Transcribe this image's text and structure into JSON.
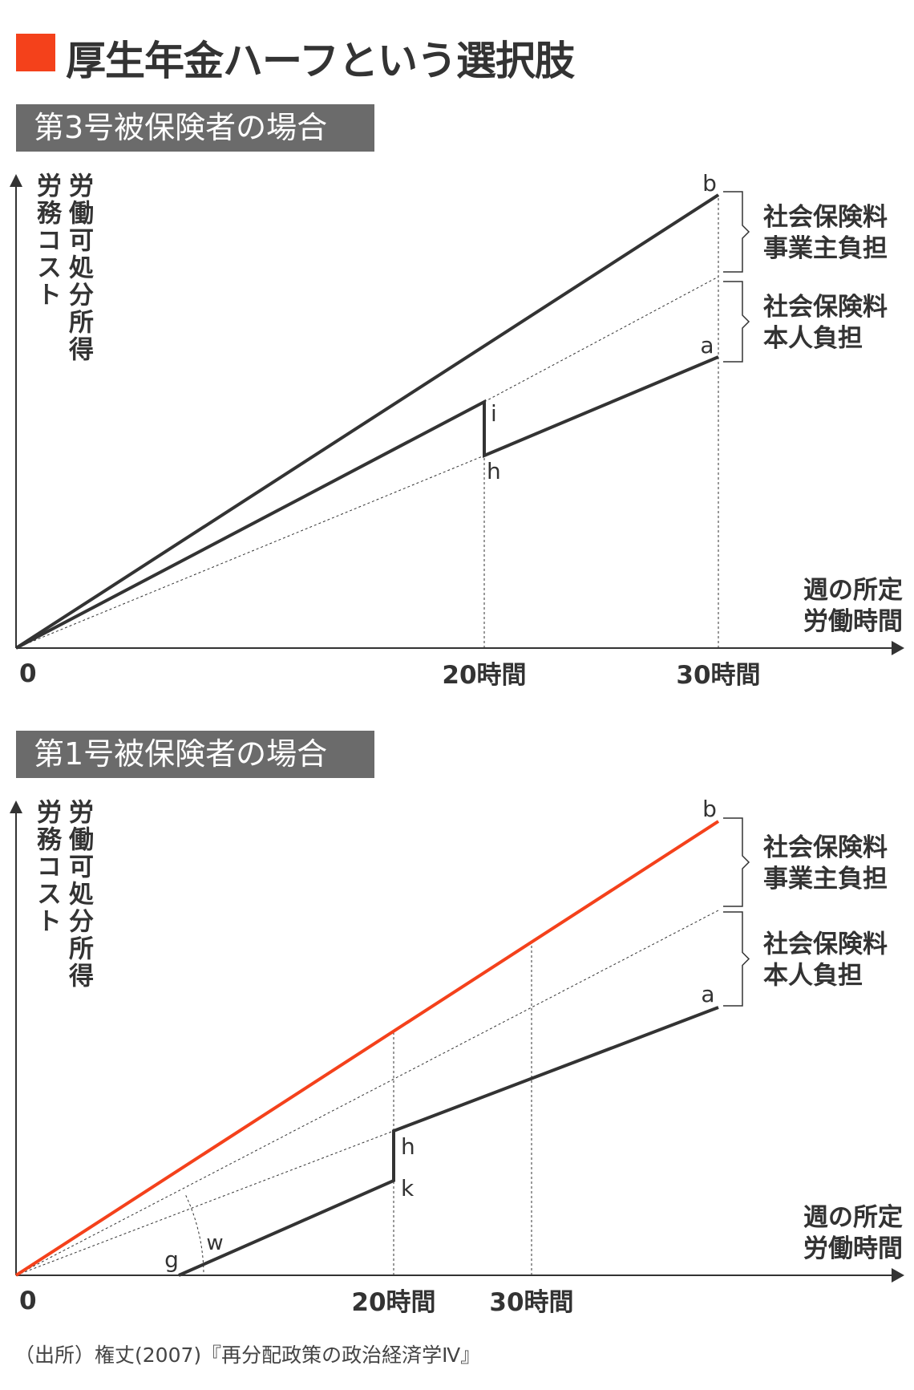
{
  "title": "厚生年金ハーフという選択肢",
  "colors": {
    "accent": "#f4411b",
    "line": "#333333",
    "subtitle_bg": "#6b6b6b"
  },
  "source": "（出所）権丈(2007)『再分配政策の政治経済学Ⅳ』",
  "chart_data": [
    {
      "type": "line",
      "subtitle": "第3号被保険者の場合",
      "ylabel_cols": [
        "労務コスト",
        "労働可処分所得"
      ],
      "xlabel_lines": [
        "週の所定",
        "労働時間"
      ],
      "origin_label": "0",
      "x_ticks": [
        "20時間",
        "30時間"
      ],
      "x_tick_hours": [
        20,
        30
      ],
      "point_labels": {
        "b": "b",
        "a": "a",
        "i": "i",
        "h": "h"
      },
      "brackets": [
        {
          "lines": [
            "社会保険料",
            "事業主負担"
          ]
        },
        {
          "lines": [
            "社会保険料",
            "本人負担"
          ]
        }
      ]
    },
    {
      "type": "line",
      "subtitle": "第1号被保険者の場合",
      "ylabel_cols": [
        "労務コスト",
        "労働可処分所得"
      ],
      "xlabel_lines": [
        "週の所定",
        "労働時間"
      ],
      "origin_label": "0",
      "x_ticks": [
        "20時間",
        "30時間"
      ],
      "x_tick_hours": [
        20,
        30
      ],
      "point_labels": {
        "b": "b",
        "a": "a",
        "h": "h",
        "k": "k",
        "g": "g",
        "w": "w"
      },
      "brackets": [
        {
          "lines": [
            "社会保険料",
            "事業主負担"
          ]
        },
        {
          "lines": [
            "社会保険料",
            "本人負担"
          ]
        }
      ]
    }
  ]
}
